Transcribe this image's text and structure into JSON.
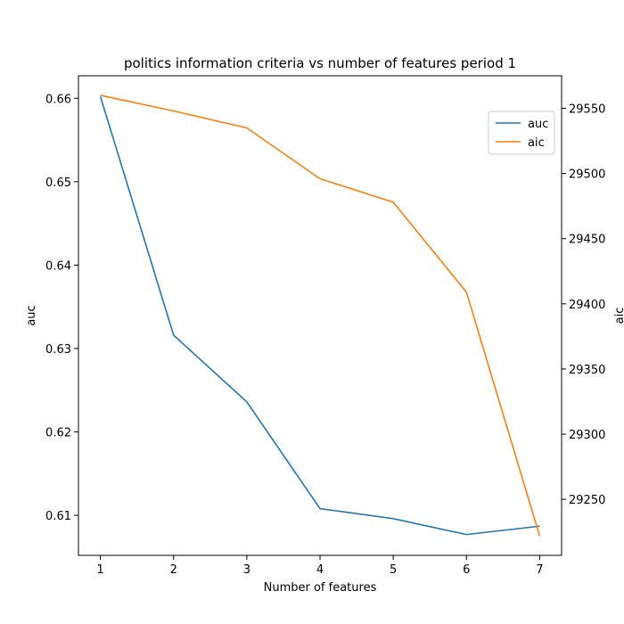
{
  "chart_data": {
    "type": "line",
    "title": "politics information criteria vs number of features period 1",
    "xlabel": "Number of features",
    "ylabel": "auc",
    "y2label": "aic",
    "x": [
      1,
      2,
      3,
      4,
      5,
      6,
      7
    ],
    "xlim": [
      0.7,
      7.3
    ],
    "ylim": [
      0.6052,
      0.6627
    ],
    "y2lim": [
      29207,
      29575
    ],
    "xticks": [
      1,
      2,
      3,
      4,
      5,
      6,
      7
    ],
    "yticks": [
      0.61,
      0.62,
      0.63,
      0.64,
      0.65,
      0.66
    ],
    "yticklabels": [
      "0.61",
      "0.62",
      "0.63",
      "0.64",
      "0.65",
      "0.66"
    ],
    "y2ticks": [
      29250,
      29300,
      29350,
      29400,
      29450,
      29500,
      29550
    ],
    "y2ticklabels": [
      "29250",
      "29300",
      "29350",
      "29400",
      "29450",
      "29500",
      "29550"
    ],
    "series": [
      {
        "name": "auc",
        "axis": "left",
        "color": "#1f77b4",
        "values": [
          0.6602,
          0.6316,
          0.6236,
          0.6108,
          0.6096,
          0.6077,
          0.6087
        ]
      },
      {
        "name": "aic",
        "axis": "right",
        "color": "#ff7f0e",
        "values": [
          29560,
          29548,
          29535,
          29496,
          29478,
          29409,
          29222
        ]
      }
    ],
    "legend": {
      "placement": "upper-right",
      "entries": [
        "auc",
        "aic"
      ]
    },
    "grid": false
  }
}
